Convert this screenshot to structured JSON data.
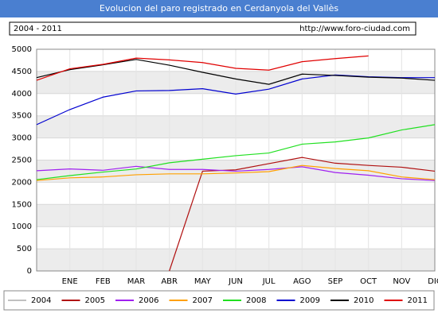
{
  "chart_data": {
    "type": "line",
    "title": "Evolucion del paro registrado en Cerdanyola del Vallès",
    "subtitle": "2004 - 2011",
    "source": "http://www.foro-ciudad.com",
    "categories": [
      null,
      "ENE",
      "FEB",
      "MAR",
      "ABR",
      "MAY",
      "JUN",
      "JUL",
      "AGO",
      "SEP",
      "OCT",
      "NOV",
      "DIC"
    ],
    "ylim": [
      0,
      5000
    ],
    "yticks": [
      0,
      500,
      1000,
      1500,
      2000,
      2500,
      3000,
      3500,
      4000,
      4500,
      5000
    ],
    "grid": true,
    "legend": "bottom",
    "series": [
      {
        "name": "2004",
        "color": "#c0c0c0",
        "values": [
          null,
          null,
          null,
          null,
          null,
          null,
          null,
          null,
          null,
          null,
          null,
          null,
          null
        ]
      },
      {
        "name": "2005",
        "color": "#b01010",
        "values": [
          null,
          null,
          null,
          null,
          0,
          2250,
          2280,
          2420,
          2560,
          2430,
          2380,
          2340,
          2250
        ]
      },
      {
        "name": "2006",
        "color": "#a020f0",
        "values": [
          2260,
          2300,
          2270,
          2360,
          2290,
          2290,
          2250,
          2290,
          2350,
          2220,
          2160,
          2080,
          2040
        ]
      },
      {
        "name": "2007",
        "color": "#ffa000",
        "values": [
          2040,
          2100,
          2120,
          2170,
          2190,
          2190,
          2210,
          2240,
          2380,
          2310,
          2260,
          2120,
          2060
        ]
      },
      {
        "name": "2008",
        "color": "#20e020",
        "values": [
          2060,
          2150,
          2230,
          2300,
          2440,
          2520,
          2600,
          2660,
          2860,
          2910,
          3000,
          3180,
          3300
        ]
      },
      {
        "name": "2009",
        "color": "#0000d0",
        "values": [
          3300,
          3640,
          3920,
          4060,
          4070,
          4110,
          3990,
          4100,
          4330,
          4420,
          4380,
          4360,
          4360
        ]
      },
      {
        "name": "2010",
        "color": "#000000",
        "values": [
          4360,
          4540,
          4650,
          4770,
          4640,
          4480,
          4330,
          4210,
          4440,
          4410,
          4370,
          4350,
          4300
        ]
      },
      {
        "name": "2011",
        "color": "#e00000",
        "values": [
          4300,
          4560,
          4660,
          4800,
          4760,
          4700,
          4570,
          4530,
          4720,
          4790,
          4850,
          null,
          null
        ]
      }
    ]
  }
}
